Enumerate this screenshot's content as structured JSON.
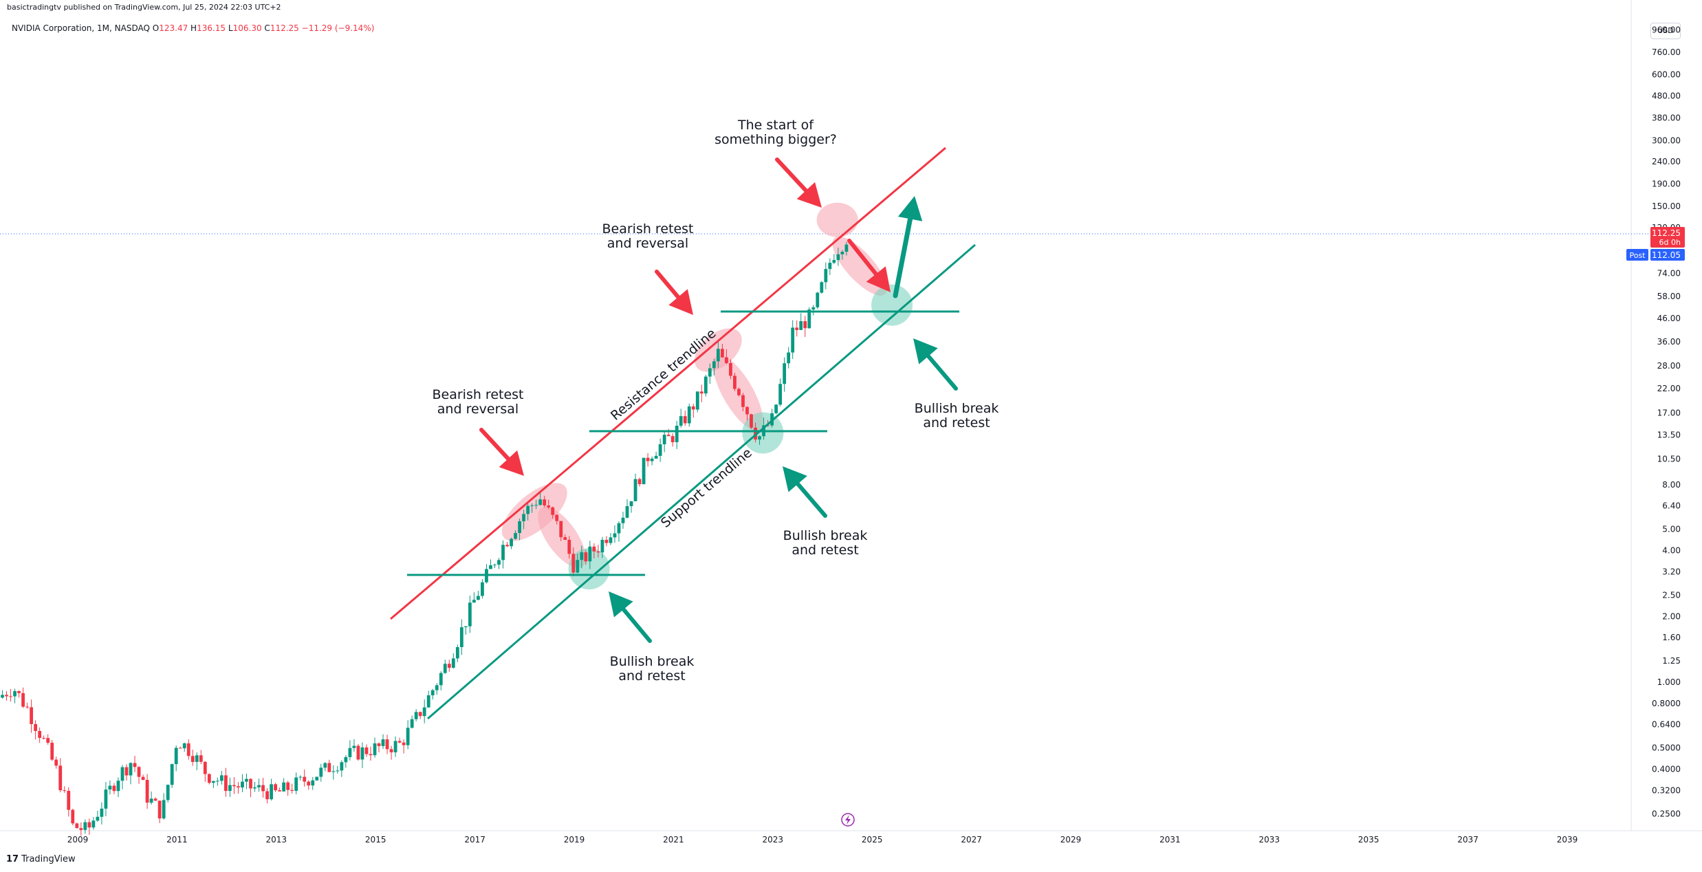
{
  "header": {
    "published": "basictradingtv published on TradingView.com, Jul 25, 2024 22:03 UTC+2",
    "symbol": "NVIDIA Corporation, 1M, NASDAQ",
    "o_label": "O",
    "o_value": "123.47",
    "h_label": "H",
    "h_value": "136.15",
    "l_label": "L",
    "l_value": "106.30",
    "c_label": "C",
    "c_value": "112.25",
    "change": "−11.29 (−9.14%)"
  },
  "currency_button": "USD",
  "price_tags": {
    "last": "112.25",
    "countdown": "6d 0h",
    "post_label": "Post",
    "post_value": "112.05"
  },
  "footer": {
    "logo": "17",
    "brand": "TradingView"
  },
  "colors": {
    "up": "#089981",
    "down": "#f23645",
    "resistance": "#f23645",
    "support": "#089981",
    "pink_highlight": "#f7a8b4",
    "green_highlight": "#7fd3bf",
    "post_tag": "#2962ff"
  },
  "chart_data": {
    "type": "candlestick",
    "scale": "log",
    "x_tick_labels": [
      "2009",
      "2011",
      "2013",
      "2015",
      "2017",
      "2019",
      "2021",
      "2023",
      "2025",
      "2027",
      "2029",
      "2031",
      "2033",
      "2035",
      "2037",
      "2039"
    ],
    "y_tick_labels": [
      "960.00",
      "760.00",
      "600.00",
      "480.00",
      "380.00",
      "300.00",
      "240.00",
      "190.00",
      "150.00",
      "120.00",
      "74.00",
      "58.00",
      "46.00",
      "36.00",
      "28.00",
      "22.00",
      "17.00",
      "13.50",
      "10.50",
      "8.00",
      "6.40",
      "5.00",
      "4.00",
      "3.20",
      "2.50",
      "2.00",
      "1.60",
      "1.25",
      "1.000",
      "0.8000",
      "0.6400",
      "0.5000",
      "0.4000",
      "0.3200",
      "0.2500"
    ],
    "ylim": [
      0.2,
      1100
    ],
    "xlim": [
      2007.4,
      2041.6
    ],
    "last_price": 112.25,
    "candles_yearly_path": [
      {
        "date": 2007.4,
        "close": 0.85
      },
      {
        "date": 2007.7,
        "close": 0.95
      },
      {
        "date": 2008.0,
        "close": 0.75
      },
      {
        "date": 2008.3,
        "close": 0.55
      },
      {
        "date": 2008.6,
        "close": 0.38
      },
      {
        "date": 2008.9,
        "close": 0.22
      },
      {
        "date": 2009.2,
        "close": 0.21
      },
      {
        "date": 2009.5,
        "close": 0.28
      },
      {
        "date": 2009.8,
        "close": 0.37
      },
      {
        "date": 2010.1,
        "close": 0.44
      },
      {
        "date": 2010.4,
        "close": 0.3
      },
      {
        "date": 2010.7,
        "close": 0.25
      },
      {
        "date": 2011.0,
        "close": 0.55
      },
      {
        "date": 2011.3,
        "close": 0.48
      },
      {
        "date": 2011.6,
        "close": 0.38
      },
      {
        "date": 2012.0,
        "close": 0.34
      },
      {
        "date": 2012.5,
        "close": 0.33
      },
      {
        "date": 2013.0,
        "close": 0.31
      },
      {
        "date": 2013.5,
        "close": 0.35
      },
      {
        "date": 2014.0,
        "close": 0.4
      },
      {
        "date": 2014.5,
        "close": 0.47
      },
      {
        "date": 2015.0,
        "close": 0.5
      },
      {
        "date": 2015.5,
        "close": 0.52
      },
      {
        "date": 2016.0,
        "close": 0.8
      },
      {
        "date": 2016.5,
        "close": 1.3
      },
      {
        "date": 2017.0,
        "close": 2.4
      },
      {
        "date": 2017.5,
        "close": 4.0
      },
      {
        "date": 2018.0,
        "close": 6.0
      },
      {
        "date": 2018.3,
        "close": 7.0
      },
      {
        "date": 2018.7,
        "close": 5.0
      },
      {
        "date": 2019.0,
        "close": 3.4
      },
      {
        "date": 2019.5,
        "close": 4.2
      },
      {
        "date": 2020.0,
        "close": 6.0
      },
      {
        "date": 2020.5,
        "close": 11.0
      },
      {
        "date": 2021.0,
        "close": 13.5
      },
      {
        "date": 2021.5,
        "close": 20.0
      },
      {
        "date": 2021.9,
        "close": 32.0
      },
      {
        "date": 2022.3,
        "close": 22.0
      },
      {
        "date": 2022.7,
        "close": 13.0
      },
      {
        "date": 2023.0,
        "close": 16.0
      },
      {
        "date": 2023.4,
        "close": 40.0
      },
      {
        "date": 2023.8,
        "close": 48.0
      },
      {
        "date": 2024.2,
        "close": 90.0
      },
      {
        "date": 2024.55,
        "close": 112.25
      }
    ],
    "annotations": [
      {
        "id": "a1",
        "text": [
          "Bearish retest",
          "and reversal"
        ]
      },
      {
        "id": "a2",
        "text": [
          "Bullish break",
          "and retest"
        ]
      },
      {
        "id": "a3",
        "text": [
          "Bearish retest",
          "and reversal"
        ]
      },
      {
        "id": "a4",
        "text": [
          "Bullish break",
          "and retest"
        ]
      },
      {
        "id": "a5",
        "text": [
          "The start of",
          "something bigger?"
        ]
      },
      {
        "id": "a6",
        "text": [
          "Bullish break",
          "and retest"
        ]
      }
    ],
    "trendline_labels": {
      "resistance": "Resistance trendline",
      "support": "Support trendline"
    }
  }
}
